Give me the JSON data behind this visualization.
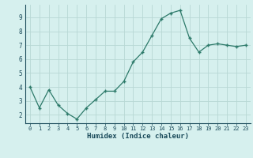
{
  "x": [
    0,
    1,
    2,
    3,
    4,
    5,
    6,
    7,
    8,
    9,
    10,
    11,
    12,
    13,
    14,
    15,
    16,
    17,
    18,
    19,
    20,
    21,
    22,
    23
  ],
  "y": [
    4.0,
    2.5,
    3.8,
    2.7,
    2.1,
    1.7,
    2.5,
    3.1,
    3.7,
    3.7,
    4.4,
    5.8,
    6.5,
    7.7,
    8.9,
    9.3,
    9.5,
    7.5,
    6.5,
    7.0,
    7.1,
    7.0,
    6.9,
    7.0
  ],
  "xlabel": "Humidex (Indice chaleur)",
  "ylim": [
    1.4,
    9.9
  ],
  "yticks": [
    2,
    3,
    4,
    5,
    6,
    7,
    8,
    9
  ],
  "xticks": [
    0,
    1,
    2,
    3,
    4,
    5,
    6,
    7,
    8,
    9,
    10,
    11,
    12,
    13,
    14,
    15,
    16,
    17,
    18,
    19,
    20,
    21,
    22,
    23
  ],
  "line_color": "#2d7a6a",
  "marker": "+",
  "marker_size": 3.5,
  "bg_color": "#d6f0ee",
  "grid_color": "#b8d8d4",
  "tick_label_color": "#1a4a5a",
  "xlabel_color": "#1a4a5a"
}
